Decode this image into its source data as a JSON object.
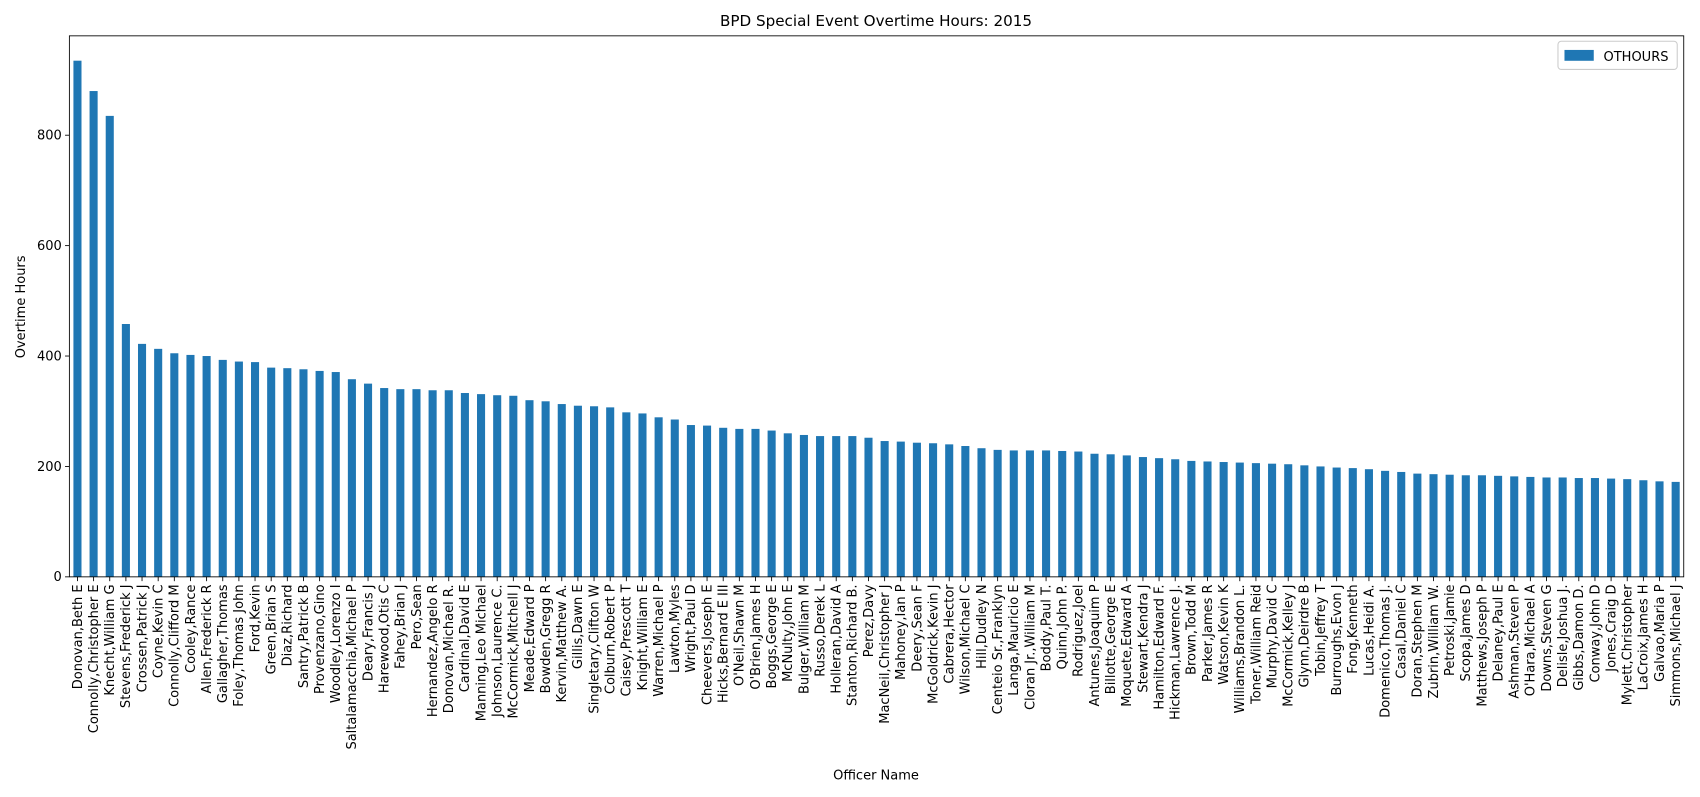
{
  "chart_data": {
    "type": "bar",
    "title": "BPD Special Event Overtime Hours: 2015",
    "x_label": "Officer Name",
    "y_label": "Overtime Hours",
    "categories": [
      "Donovan,Beth E",
      "Connolly,Christopher E",
      "Knecht,William G",
      "Stevens,Frederick J",
      "Crossen,Patrick J",
      "Coyne,Kevin C",
      "Connolly,Clifford M",
      "Cooley,Rance",
      "Allen,Frederick R",
      "Gallagher,Thomas",
      "Foley,Thomas John",
      "Ford,Kevin",
      "Green,Brian S",
      "Diaz,Richard",
      "Santry,Patrick B",
      "Provenzano,Gino",
      "Woodley,Lorenzo I",
      "Saltalamacchia,Michael P",
      "Deary,Francis J",
      "Harewood,Otis C",
      "Fahey,Brian J",
      "Pero,Sean",
      "Hernandez,Angelo R",
      "Donovan,Michael R.",
      "Cardinal,David E",
      "Manning,Leo Michael",
      "Johnson,Laurence C.",
      "McCormick,Mitchell J",
      "Meade,Edward P",
      "Bowden,Gregg R",
      "Kervin,Matthew A.",
      "Gillis,Dawn E",
      "Singletary,Clifton W",
      "Colburn,Robert P",
      "Caisey,Prescott T",
      "Knight,William E",
      "Warren,Michael P",
      "Lawton,Myles",
      "Wright,Paul D",
      "Cheevers,Joseph E",
      "Hicks,Bernard E III",
      "O'Neil,Shawn M",
      "O'Brien,James H",
      "Boggs,George E",
      "McNulty,John E",
      "Bulger,William M",
      "Russo,Derek L",
      "Holleran,David A",
      "Stanton,Richard B.",
      "Perez,Davy",
      "MacNeil,Christopher J",
      "Mahoney,Ian P",
      "Deery,Sean F",
      "McGoldrick,Kevin J",
      "Cabrera,Hector",
      "Wilson,Michael C",
      "Hill,Dudley N",
      "Centeio Sr.,Franklyn",
      "Langa,Mauricio E",
      "Cloran Jr.,William M",
      "Boddy,Paul T.",
      "Quinn,John P.",
      "Rodriguez,Joel",
      "Antunes,Joaquim P",
      "Billotte,George E",
      "Moquete,Edward A",
      "Stewart,Kendra J",
      "Hamilton,Edward F.",
      "Hickman,Lawrence J.",
      "Brown,Todd M",
      "Parker,James R",
      "Watson,Kevin K",
      "Williams,Brandon L.",
      "Toner,William Reid",
      "Murphy,David C",
      "McCormick,Kelley J",
      "Glynn,Deirdre B",
      "Tobin,Jeffrey T",
      "Burroughs,Evon J",
      "Fong,Kenneth",
      "Lucas,Heidi A.",
      "Domenico,Thomas J.",
      "Casal,Daniel C",
      "Doran,Stephen M",
      "Zubrin,William W.",
      "Petroski,Jamie",
      "Scopa,James D",
      "Matthews,Joseph P",
      "Delaney,Paul E",
      "Ashman,Steven P",
      "O'Hara,Michael A",
      "Downs,Steven G",
      "Delisle,Joshua J.",
      "Gibbs,Damon D.",
      "Conway,John D",
      "Jones,Craig D",
      "Mylett,Christopher",
      "LaCroix,James H",
      "Galvao,Maria P",
      "Simmons,Michael J"
    ],
    "series": [
      {
        "name": "OTHOURS",
        "color": "#1f77b4",
        "values": [
          935,
          880,
          835,
          458,
          422,
          413,
          405,
          402,
          400,
          393,
          390,
          389,
          379,
          378,
          376,
          373,
          371,
          358,
          350,
          342,
          340,
          340,
          338,
          338,
          333,
          331,
          329,
          328,
          320,
          318,
          313,
          310,
          309,
          307,
          298,
          296,
          289,
          285,
          275,
          274,
          270,
          268,
          268,
          265,
          260,
          257,
          255,
          255,
          255,
          252,
          246,
          245,
          243,
          242,
          240,
          237,
          233,
          230,
          229,
          229,
          229,
          228,
          227,
          223,
          222,
          220,
          217,
          215,
          213,
          210,
          209,
          208,
          207,
          206,
          205,
          204,
          202,
          200,
          198,
          197,
          195,
          192,
          190,
          187,
          186,
          185,
          184,
          184,
          183,
          182,
          181,
          180,
          180,
          179,
          179,
          178,
          177,
          175,
          173,
          172
        ]
      }
    ],
    "ylim": [
      0,
      980
    ],
    "yticks": [
      0,
      200,
      400,
      600,
      800
    ],
    "legend": "upper right"
  }
}
